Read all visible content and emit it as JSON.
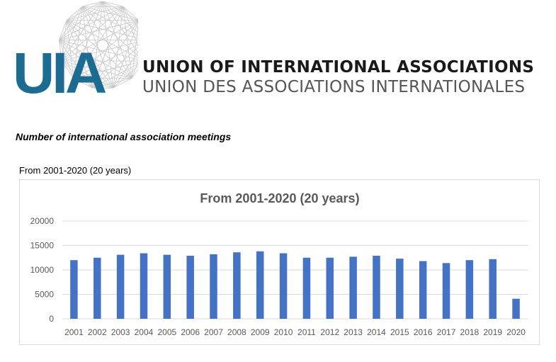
{
  "brand": {
    "logo_letters": "UIA",
    "name_en": "UNION OF INTERNATIONAL ASSOCIATIONS",
    "name_fr": "UNION DES ASSOCIATIONS INTERNATIONALES",
    "logo_icon": "polyhedron-network-icon",
    "colors": {
      "logo_blue": "#1b6b93",
      "logo_lines": "#c8c8c8"
    }
  },
  "page": {
    "heading": "Number of international association meetings",
    "caption": "From 2001-2020 (20 years)"
  },
  "chart_data": {
    "type": "bar",
    "title": "From 2001-2020 (20 years)",
    "xlabel": "",
    "ylabel": "",
    "categories": [
      "2001",
      "2002",
      "2003",
      "2004",
      "2005",
      "2006",
      "2007",
      "2008",
      "2009",
      "2010",
      "2011",
      "2012",
      "2013",
      "2014",
      "2015",
      "2016",
      "2017",
      "2018",
      "2019",
      "2020"
    ],
    "values": [
      12000,
      12500,
      13100,
      13400,
      13100,
      12900,
      13200,
      13600,
      13800,
      13400,
      12500,
      12500,
      12700,
      12900,
      12300,
      11800,
      11400,
      12000,
      12200,
      4100
    ],
    "ylim": [
      0,
      20000
    ],
    "yticks": [
      0,
      5000,
      10000,
      15000,
      20000
    ],
    "grid": true,
    "legend": "none",
    "bar_color": "#4472c4"
  }
}
